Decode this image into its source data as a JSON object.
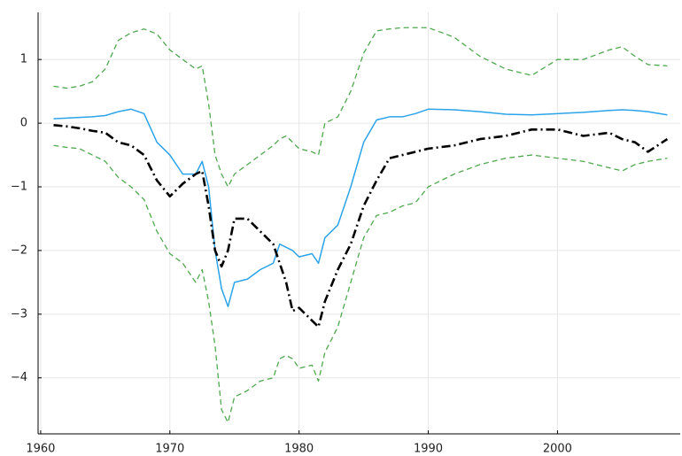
{
  "chart_data": {
    "type": "line",
    "x": [
      1961,
      1962,
      1963,
      1964,
      1965,
      1966,
      1967,
      1968,
      1969,
      1970,
      1971,
      1972,
      1972.5,
      1973,
      1973.5,
      1974,
      1974.5,
      1975,
      1976,
      1977,
      1978,
      1978.5,
      1979,
      1979.5,
      1980,
      1981,
      1981.5,
      1982,
      1983,
      1984,
      1985,
      1986,
      1987,
      1988,
      1989,
      1990,
      1992,
      1994,
      1996,
      1998,
      2000,
      2002,
      2004,
      2005,
      2006,
      2007,
      2008.5
    ],
    "series": [
      {
        "color": "#2ba3e8",
        "linestyle": "solid",
        "width": 1.5,
        "values": [
          0.07,
          0.08,
          0.09,
          0.1,
          0.12,
          0.18,
          0.22,
          0.15,
          -0.3,
          -0.5,
          -0.8,
          -0.8,
          -0.6,
          -1.0,
          -2.0,
          -2.6,
          -2.88,
          -2.5,
          -2.45,
          -2.3,
          -2.2,
          -1.9,
          -1.95,
          -2.0,
          -2.1,
          -2.05,
          -2.2,
          -1.8,
          -1.6,
          -1.0,
          -0.3,
          0.05,
          0.1,
          0.1,
          0.15,
          0.22,
          0.21,
          0.18,
          0.14,
          0.13,
          0.15,
          0.17,
          0.2,
          0.21,
          0.2,
          0.18,
          0.13
        ]
      },
      {
        "color": "#000000",
        "linestyle": "dashdot",
        "width": 2.6,
        "values": [
          -0.03,
          -0.05,
          -0.08,
          -0.12,
          -0.15,
          -0.3,
          -0.35,
          -0.5,
          -0.9,
          -1.15,
          -0.95,
          -0.8,
          -0.75,
          -1.3,
          -2.0,
          -2.25,
          -2.0,
          -1.5,
          -1.5,
          -1.7,
          -1.9,
          -2.2,
          -2.5,
          -2.95,
          -2.9,
          -3.1,
          -3.2,
          -2.8,
          -2.3,
          -1.9,
          -1.3,
          -0.9,
          -0.55,
          -0.5,
          -0.45,
          -0.4,
          -0.35,
          -0.25,
          -0.2,
          -0.1,
          -0.1,
          -0.2,
          -0.15,
          -0.25,
          -0.3,
          -0.45,
          -0.25
        ]
      },
      {
        "color": "#4ea84e",
        "linestyle": "dash",
        "width": 1.3,
        "values": [
          0.58,
          0.55,
          0.58,
          0.65,
          0.85,
          1.3,
          1.42,
          1.48,
          1.4,
          1.15,
          1.0,
          0.85,
          0.9,
          0.3,
          -0.5,
          -0.8,
          -1.0,
          -0.8,
          -0.65,
          -0.5,
          -0.35,
          -0.25,
          -0.2,
          -0.3,
          -0.4,
          -0.45,
          -0.5,
          0,
          0.1,
          0.5,
          1.1,
          1.45,
          1.48,
          1.5,
          1.5,
          1.5,
          1.35,
          1.05,
          0.85,
          0.75,
          1.0,
          1.0,
          1.15,
          1.2,
          1.05,
          0.92,
          0.9
        ]
      },
      {
        "color": "#4ea84e",
        "linestyle": "dash",
        "width": 1.3,
        "values": [
          -0.35,
          -0.38,
          -0.4,
          -0.5,
          -0.6,
          -0.85,
          -1.0,
          -1.2,
          -1.7,
          -2.05,
          -2.2,
          -2.5,
          -2.3,
          -2.8,
          -3.5,
          -4.5,
          -4.7,
          -4.3,
          -4.2,
          -4.05,
          -4.0,
          -3.7,
          -3.65,
          -3.7,
          -3.85,
          -3.8,
          -4.05,
          -3.6,
          -3.2,
          -2.5,
          -1.8,
          -1.45,
          -1.4,
          -1.3,
          -1.25,
          -1.0,
          -0.8,
          -0.65,
          -0.55,
          -0.5,
          -0.55,
          -0.6,
          -0.7,
          -0.75,
          -0.65,
          -0.6,
          -0.55
        ]
      }
    ],
    "xlim": [
      1959.8,
      2009.5
    ],
    "xticks": [
      1960,
      1970,
      1980,
      1990,
      2000
    ],
    "ylim": [
      -4.88,
      1.74
    ],
    "yticks": [
      {
        "value": -4,
        "label": "−4"
      },
      {
        "value": -3,
        "label": "−3"
      },
      {
        "value": -2,
        "label": "−2"
      },
      {
        "value": -1,
        "label": "−1"
      },
      0,
      1
    ],
    "grid": true
  }
}
